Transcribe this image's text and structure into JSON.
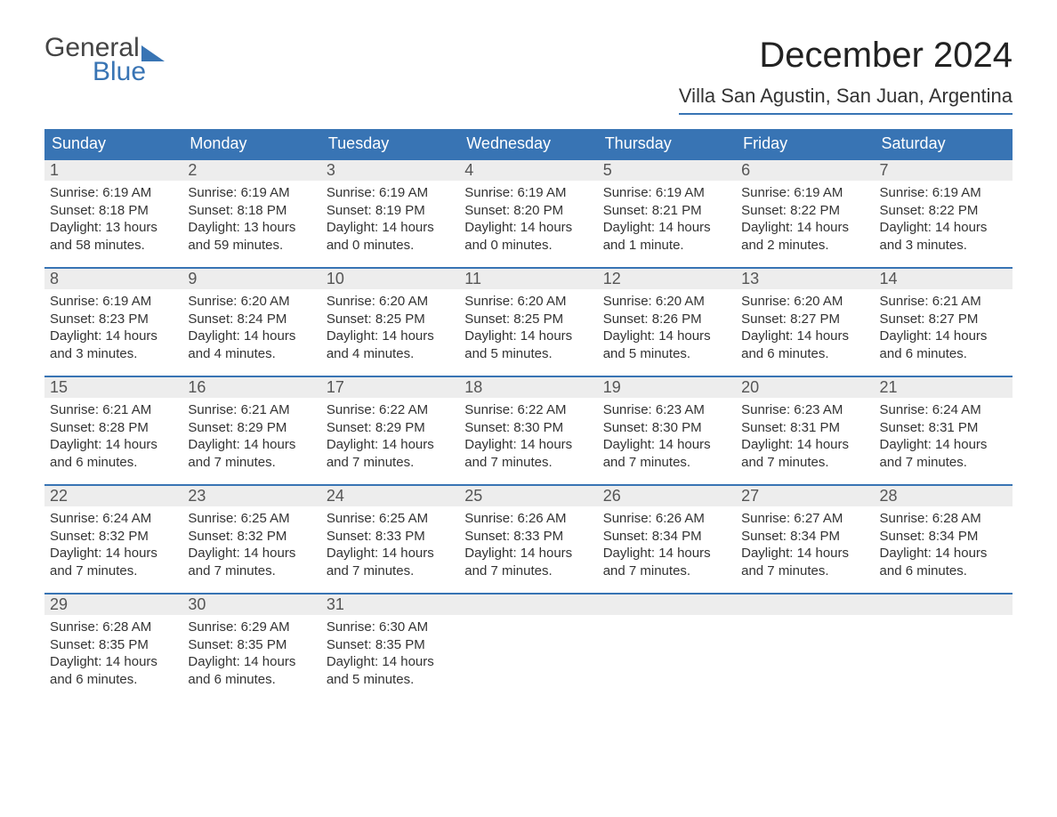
{
  "brand": {
    "word1": "General",
    "word2": "Blue"
  },
  "colors": {
    "accent": "#3874b4",
    "header_bg": "#3874b4",
    "header_text": "#ffffff",
    "daynum_bg": "#ededed",
    "daynum_text": "#555555",
    "body_text": "#333333",
    "page_bg": "#ffffff"
  },
  "header": {
    "month_title": "December 2024",
    "location": "Villa San Agustin, San Juan, Argentina"
  },
  "day_names": [
    "Sunday",
    "Monday",
    "Tuesday",
    "Wednesday",
    "Thursday",
    "Friday",
    "Saturday"
  ],
  "weeks": [
    [
      {
        "num": "1",
        "sunrise": "Sunrise: 6:19 AM",
        "sunset": "Sunset: 8:18 PM",
        "day_l1": "Daylight: 13 hours",
        "day_l2": "and 58 minutes."
      },
      {
        "num": "2",
        "sunrise": "Sunrise: 6:19 AM",
        "sunset": "Sunset: 8:18 PM",
        "day_l1": "Daylight: 13 hours",
        "day_l2": "and 59 minutes."
      },
      {
        "num": "3",
        "sunrise": "Sunrise: 6:19 AM",
        "sunset": "Sunset: 8:19 PM",
        "day_l1": "Daylight: 14 hours",
        "day_l2": "and 0 minutes."
      },
      {
        "num": "4",
        "sunrise": "Sunrise: 6:19 AM",
        "sunset": "Sunset: 8:20 PM",
        "day_l1": "Daylight: 14 hours",
        "day_l2": "and 0 minutes."
      },
      {
        "num": "5",
        "sunrise": "Sunrise: 6:19 AM",
        "sunset": "Sunset: 8:21 PM",
        "day_l1": "Daylight: 14 hours",
        "day_l2": "and 1 minute."
      },
      {
        "num": "6",
        "sunrise": "Sunrise: 6:19 AM",
        "sunset": "Sunset: 8:22 PM",
        "day_l1": "Daylight: 14 hours",
        "day_l2": "and 2 minutes."
      },
      {
        "num": "7",
        "sunrise": "Sunrise: 6:19 AM",
        "sunset": "Sunset: 8:22 PM",
        "day_l1": "Daylight: 14 hours",
        "day_l2": "and 3 minutes."
      }
    ],
    [
      {
        "num": "8",
        "sunrise": "Sunrise: 6:19 AM",
        "sunset": "Sunset: 8:23 PM",
        "day_l1": "Daylight: 14 hours",
        "day_l2": "and 3 minutes."
      },
      {
        "num": "9",
        "sunrise": "Sunrise: 6:20 AM",
        "sunset": "Sunset: 8:24 PM",
        "day_l1": "Daylight: 14 hours",
        "day_l2": "and 4 minutes."
      },
      {
        "num": "10",
        "sunrise": "Sunrise: 6:20 AM",
        "sunset": "Sunset: 8:25 PM",
        "day_l1": "Daylight: 14 hours",
        "day_l2": "and 4 minutes."
      },
      {
        "num": "11",
        "sunrise": "Sunrise: 6:20 AM",
        "sunset": "Sunset: 8:25 PM",
        "day_l1": "Daylight: 14 hours",
        "day_l2": "and 5 minutes."
      },
      {
        "num": "12",
        "sunrise": "Sunrise: 6:20 AM",
        "sunset": "Sunset: 8:26 PM",
        "day_l1": "Daylight: 14 hours",
        "day_l2": "and 5 minutes."
      },
      {
        "num": "13",
        "sunrise": "Sunrise: 6:20 AM",
        "sunset": "Sunset: 8:27 PM",
        "day_l1": "Daylight: 14 hours",
        "day_l2": "and 6 minutes."
      },
      {
        "num": "14",
        "sunrise": "Sunrise: 6:21 AM",
        "sunset": "Sunset: 8:27 PM",
        "day_l1": "Daylight: 14 hours",
        "day_l2": "and 6 minutes."
      }
    ],
    [
      {
        "num": "15",
        "sunrise": "Sunrise: 6:21 AM",
        "sunset": "Sunset: 8:28 PM",
        "day_l1": "Daylight: 14 hours",
        "day_l2": "and 6 minutes."
      },
      {
        "num": "16",
        "sunrise": "Sunrise: 6:21 AM",
        "sunset": "Sunset: 8:29 PM",
        "day_l1": "Daylight: 14 hours",
        "day_l2": "and 7 minutes."
      },
      {
        "num": "17",
        "sunrise": "Sunrise: 6:22 AM",
        "sunset": "Sunset: 8:29 PM",
        "day_l1": "Daylight: 14 hours",
        "day_l2": "and 7 minutes."
      },
      {
        "num": "18",
        "sunrise": "Sunrise: 6:22 AM",
        "sunset": "Sunset: 8:30 PM",
        "day_l1": "Daylight: 14 hours",
        "day_l2": "and 7 minutes."
      },
      {
        "num": "19",
        "sunrise": "Sunrise: 6:23 AM",
        "sunset": "Sunset: 8:30 PM",
        "day_l1": "Daylight: 14 hours",
        "day_l2": "and 7 minutes."
      },
      {
        "num": "20",
        "sunrise": "Sunrise: 6:23 AM",
        "sunset": "Sunset: 8:31 PM",
        "day_l1": "Daylight: 14 hours",
        "day_l2": "and 7 minutes."
      },
      {
        "num": "21",
        "sunrise": "Sunrise: 6:24 AM",
        "sunset": "Sunset: 8:31 PM",
        "day_l1": "Daylight: 14 hours",
        "day_l2": "and 7 minutes."
      }
    ],
    [
      {
        "num": "22",
        "sunrise": "Sunrise: 6:24 AM",
        "sunset": "Sunset: 8:32 PM",
        "day_l1": "Daylight: 14 hours",
        "day_l2": "and 7 minutes."
      },
      {
        "num": "23",
        "sunrise": "Sunrise: 6:25 AM",
        "sunset": "Sunset: 8:32 PM",
        "day_l1": "Daylight: 14 hours",
        "day_l2": "and 7 minutes."
      },
      {
        "num": "24",
        "sunrise": "Sunrise: 6:25 AM",
        "sunset": "Sunset: 8:33 PM",
        "day_l1": "Daylight: 14 hours",
        "day_l2": "and 7 minutes."
      },
      {
        "num": "25",
        "sunrise": "Sunrise: 6:26 AM",
        "sunset": "Sunset: 8:33 PM",
        "day_l1": "Daylight: 14 hours",
        "day_l2": "and 7 minutes."
      },
      {
        "num": "26",
        "sunrise": "Sunrise: 6:26 AM",
        "sunset": "Sunset: 8:34 PM",
        "day_l1": "Daylight: 14 hours",
        "day_l2": "and 7 minutes."
      },
      {
        "num": "27",
        "sunrise": "Sunrise: 6:27 AM",
        "sunset": "Sunset: 8:34 PM",
        "day_l1": "Daylight: 14 hours",
        "day_l2": "and 7 minutes."
      },
      {
        "num": "28",
        "sunrise": "Sunrise: 6:28 AM",
        "sunset": "Sunset: 8:34 PM",
        "day_l1": "Daylight: 14 hours",
        "day_l2": "and 6 minutes."
      }
    ],
    [
      {
        "num": "29",
        "sunrise": "Sunrise: 6:28 AM",
        "sunset": "Sunset: 8:35 PM",
        "day_l1": "Daylight: 14 hours",
        "day_l2": "and 6 minutes."
      },
      {
        "num": "30",
        "sunrise": "Sunrise: 6:29 AM",
        "sunset": "Sunset: 8:35 PM",
        "day_l1": "Daylight: 14 hours",
        "day_l2": "and 6 minutes."
      },
      {
        "num": "31",
        "sunrise": "Sunrise: 6:30 AM",
        "sunset": "Sunset: 8:35 PM",
        "day_l1": "Daylight: 14 hours",
        "day_l2": "and 5 minutes."
      },
      {
        "empty": true,
        "num": " "
      },
      {
        "empty": true,
        "num": " "
      },
      {
        "empty": true,
        "num": " "
      },
      {
        "empty": true,
        "num": " "
      }
    ]
  ]
}
